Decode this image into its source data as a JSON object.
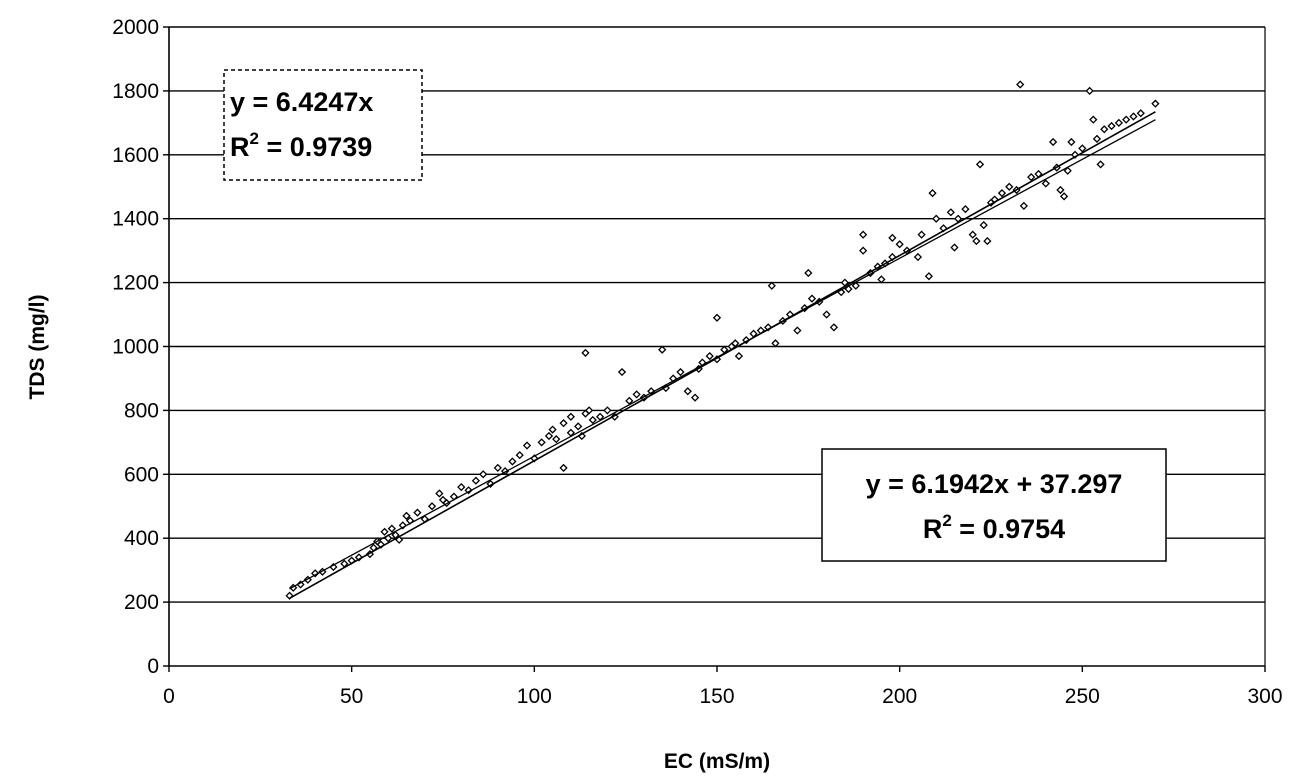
{
  "chart_data": {
    "type": "scatter",
    "title": "",
    "xlabel": "EC (mS/m)",
    "ylabel": "TDS (mg/l)",
    "xlim": [
      0,
      300
    ],
    "ylim": [
      0,
      2000
    ],
    "xticks": [
      "0",
      "50",
      "100",
      "150",
      "200",
      "250",
      "300"
    ],
    "yticks": [
      "0",
      "200",
      "400",
      "600",
      "800",
      "1000",
      "1200",
      "1400",
      "1600",
      "1800",
      "2000"
    ],
    "grid": "horizontal",
    "legend": "none",
    "marker": "diamond",
    "series": [
      {
        "points": [
          [
            33,
            220
          ],
          [
            34,
            245
          ],
          [
            36,
            255
          ],
          [
            38,
            270
          ],
          [
            40,
            290
          ],
          [
            42,
            295
          ],
          [
            45,
            310
          ],
          [
            48,
            320
          ],
          [
            50,
            330
          ],
          [
            52,
            340
          ],
          [
            55,
            350
          ],
          [
            56,
            370
          ],
          [
            57,
            390
          ],
          [
            58,
            380
          ],
          [
            59,
            420
          ],
          [
            60,
            400
          ],
          [
            61,
            430
          ],
          [
            62,
            410
          ],
          [
            63,
            395
          ],
          [
            64,
            440
          ],
          [
            65,
            470
          ],
          [
            66,
            455
          ],
          [
            68,
            480
          ],
          [
            70,
            460
          ],
          [
            72,
            500
          ],
          [
            74,
            540
          ],
          [
            75,
            520
          ],
          [
            76,
            510
          ],
          [
            78,
            530
          ],
          [
            80,
            560
          ],
          [
            82,
            550
          ],
          [
            84,
            580
          ],
          [
            86,
            600
          ],
          [
            88,
            570
          ],
          [
            90,
            620
          ],
          [
            92,
            610
          ],
          [
            94,
            640
          ],
          [
            96,
            660
          ],
          [
            98,
            690
          ],
          [
            100,
            650
          ],
          [
            102,
            700
          ],
          [
            104,
            720
          ],
          [
            105,
            740
          ],
          [
            106,
            710
          ],
          [
            108,
            760
          ],
          [
            108,
            620
          ],
          [
            110,
            780
          ],
          [
            110,
            730
          ],
          [
            112,
            750
          ],
          [
            113,
            720
          ],
          [
            114,
            790
          ],
          [
            114,
            980
          ],
          [
            115,
            800
          ],
          [
            116,
            770
          ],
          [
            118,
            780
          ],
          [
            120,
            800
          ],
          [
            122,
            780
          ],
          [
            124,
            920
          ],
          [
            126,
            830
          ],
          [
            128,
            850
          ],
          [
            130,
            840
          ],
          [
            132,
            860
          ],
          [
            135,
            990
          ],
          [
            136,
            870
          ],
          [
            138,
            900
          ],
          [
            140,
            920
          ],
          [
            142,
            860
          ],
          [
            144,
            840
          ],
          [
            145,
            930
          ],
          [
            146,
            950
          ],
          [
            148,
            970
          ],
          [
            150,
            1090
          ],
          [
            150,
            960
          ],
          [
            152,
            990
          ],
          [
            154,
            1000
          ],
          [
            155,
            1010
          ],
          [
            156,
            970
          ],
          [
            158,
            1020
          ],
          [
            160,
            1040
          ],
          [
            162,
            1050
          ],
          [
            164,
            1060
          ],
          [
            165,
            1190
          ],
          [
            166,
            1010
          ],
          [
            168,
            1080
          ],
          [
            170,
            1100
          ],
          [
            172,
            1050
          ],
          [
            174,
            1120
          ],
          [
            175,
            1230
          ],
          [
            176,
            1150
          ],
          [
            178,
            1140
          ],
          [
            180,
            1100
          ],
          [
            182,
            1060
          ],
          [
            184,
            1170
          ],
          [
            185,
            1200
          ],
          [
            186,
            1180
          ],
          [
            188,
            1190
          ],
          [
            190,
            1350
          ],
          [
            190,
            1300
          ],
          [
            192,
            1230
          ],
          [
            194,
            1250
          ],
          [
            195,
            1210
          ],
          [
            196,
            1260
          ],
          [
            198,
            1280
          ],
          [
            198,
            1340
          ],
          [
            200,
            1320
          ],
          [
            202,
            1300
          ],
          [
            205,
            1280
          ],
          [
            206,
            1350
          ],
          [
            208,
            1220
          ],
          [
            209,
            1480
          ],
          [
            210,
            1400
          ],
          [
            212,
            1370
          ],
          [
            214,
            1420
          ],
          [
            215,
            1310
          ],
          [
            216,
            1400
          ],
          [
            218,
            1430
          ],
          [
            220,
            1350
          ],
          [
            221,
            1330
          ],
          [
            222,
            1570
          ],
          [
            223,
            1380
          ],
          [
            224,
            1330
          ],
          [
            225,
            1450
          ],
          [
            226,
            1460
          ],
          [
            228,
            1480
          ],
          [
            230,
            1500
          ],
          [
            232,
            1490
          ],
          [
            233,
            1820
          ],
          [
            234,
            1440
          ],
          [
            236,
            1530
          ],
          [
            238,
            1540
          ],
          [
            240,
            1510
          ],
          [
            242,
            1640
          ],
          [
            243,
            1560
          ],
          [
            244,
            1490
          ],
          [
            245,
            1470
          ],
          [
            246,
            1550
          ],
          [
            247,
            1640
          ],
          [
            248,
            1600
          ],
          [
            250,
            1620
          ],
          [
            252,
            1800
          ],
          [
            253,
            1710
          ],
          [
            254,
            1650
          ],
          [
            255,
            1570
          ],
          [
            256,
            1680
          ],
          [
            258,
            1690
          ],
          [
            260,
            1700
          ],
          [
            262,
            1710
          ],
          [
            264,
            1720
          ],
          [
            266,
            1730
          ],
          [
            270,
            1760
          ]
        ]
      }
    ],
    "trendlines": [
      {
        "slope": 6.4247,
        "intercept": 0,
        "x_range": [
          33,
          270
        ]
      },
      {
        "slope": 6.1942,
        "intercept": 37.297,
        "x_range": [
          33,
          270
        ]
      }
    ],
    "annotations": [
      {
        "line1": "y = 6.4247x",
        "r2_prefix": "R",
        "r2_sup": "2",
        "r2_value": " = 0.9739",
        "box": "dashed"
      },
      {
        "line1": "y = 6.1942x + 37.297",
        "r2_prefix": "R",
        "r2_sup": "2",
        "r2_value": " = 0.9754",
        "box": "solid"
      }
    ]
  }
}
